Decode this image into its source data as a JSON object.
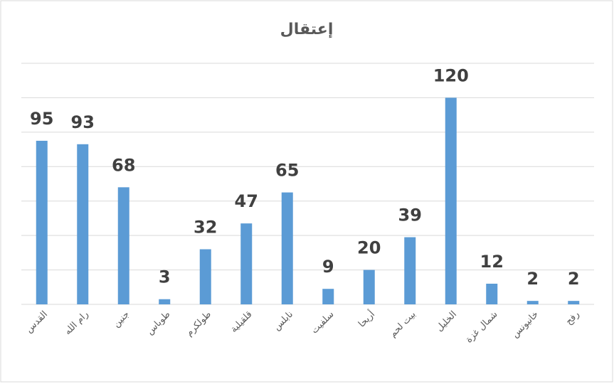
{
  "chart_data": {
    "type": "bar",
    "title": "إعتقال",
    "categories": [
      "القدس",
      "رام الله",
      "جنين",
      "طوباس",
      "طولكرم",
      "قلقيلية",
      "نابلس",
      "سلفيت",
      "أريحا",
      "بيت لحم",
      "الخليل",
      "شمال غزة",
      "خانيونس",
      "رفح"
    ],
    "values": [
      95,
      93,
      68,
      3,
      32,
      47,
      65,
      9,
      20,
      39,
      120,
      12,
      2,
      2
    ],
    "color": "#5b9bd5",
    "ylim": [
      0,
      140
    ],
    "yticks": [
      0,
      20,
      40,
      60,
      80,
      100,
      120,
      140
    ],
    "grid": true
  }
}
